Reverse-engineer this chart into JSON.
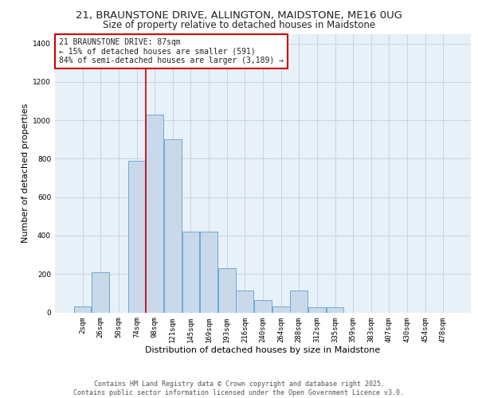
{
  "title_line1": "21, BRAUNSTONE DRIVE, ALLINGTON, MAIDSTONE, ME16 0UG",
  "title_line2": "Size of property relative to detached houses in Maidstone",
  "xlabel": "Distribution of detached houses by size in Maidstone",
  "ylabel": "Number of detached properties",
  "footer_line1": "Contains HM Land Registry data © Crown copyright and database right 2025.",
  "footer_line2": "Contains public sector information licensed under the Open Government Licence v3.0.",
  "annotation_line1": "21 BRAUNSTONE DRIVE: 87sqm",
  "annotation_line2": "← 15% of detached houses are smaller (591)",
  "annotation_line3": "84% of semi-detached houses are larger (3,189) →",
  "bar_categories": [
    "2sqm",
    "26sqm",
    "50sqm",
    "74sqm",
    "98sqm",
    "121sqm",
    "145sqm",
    "169sqm",
    "193sqm",
    "216sqm",
    "240sqm",
    "264sqm",
    "288sqm",
    "312sqm",
    "335sqm",
    "359sqm",
    "383sqm",
    "407sqm",
    "430sqm",
    "454sqm",
    "478sqm"
  ],
  "bar_values": [
    30,
    210,
    0,
    790,
    1030,
    900,
    420,
    420,
    230,
    115,
    65,
    30,
    115,
    25,
    25,
    0,
    0,
    0,
    0,
    0,
    0
  ],
  "bar_color": "#c9d9ea",
  "bar_edge_color": "#6aaad4",
  "red_line_x": 3.52,
  "ylim": [
    0,
    1450
  ],
  "yticks": [
    0,
    200,
    400,
    600,
    800,
    1000,
    1200,
    1400
  ],
  "grid_color": "#c8d4e4",
  "bg_color": "#e8f0f8",
  "annotation_box_facecolor": "#ffffff",
  "annotation_box_edge": "#cc0000",
  "red_line_color": "#cc0000",
  "title_fontsize": 9.5,
  "subtitle_fontsize": 8.5,
  "axis_label_fontsize": 8,
  "tick_fontsize": 6.5,
  "annotation_fontsize": 7,
  "footer_fontsize": 6
}
